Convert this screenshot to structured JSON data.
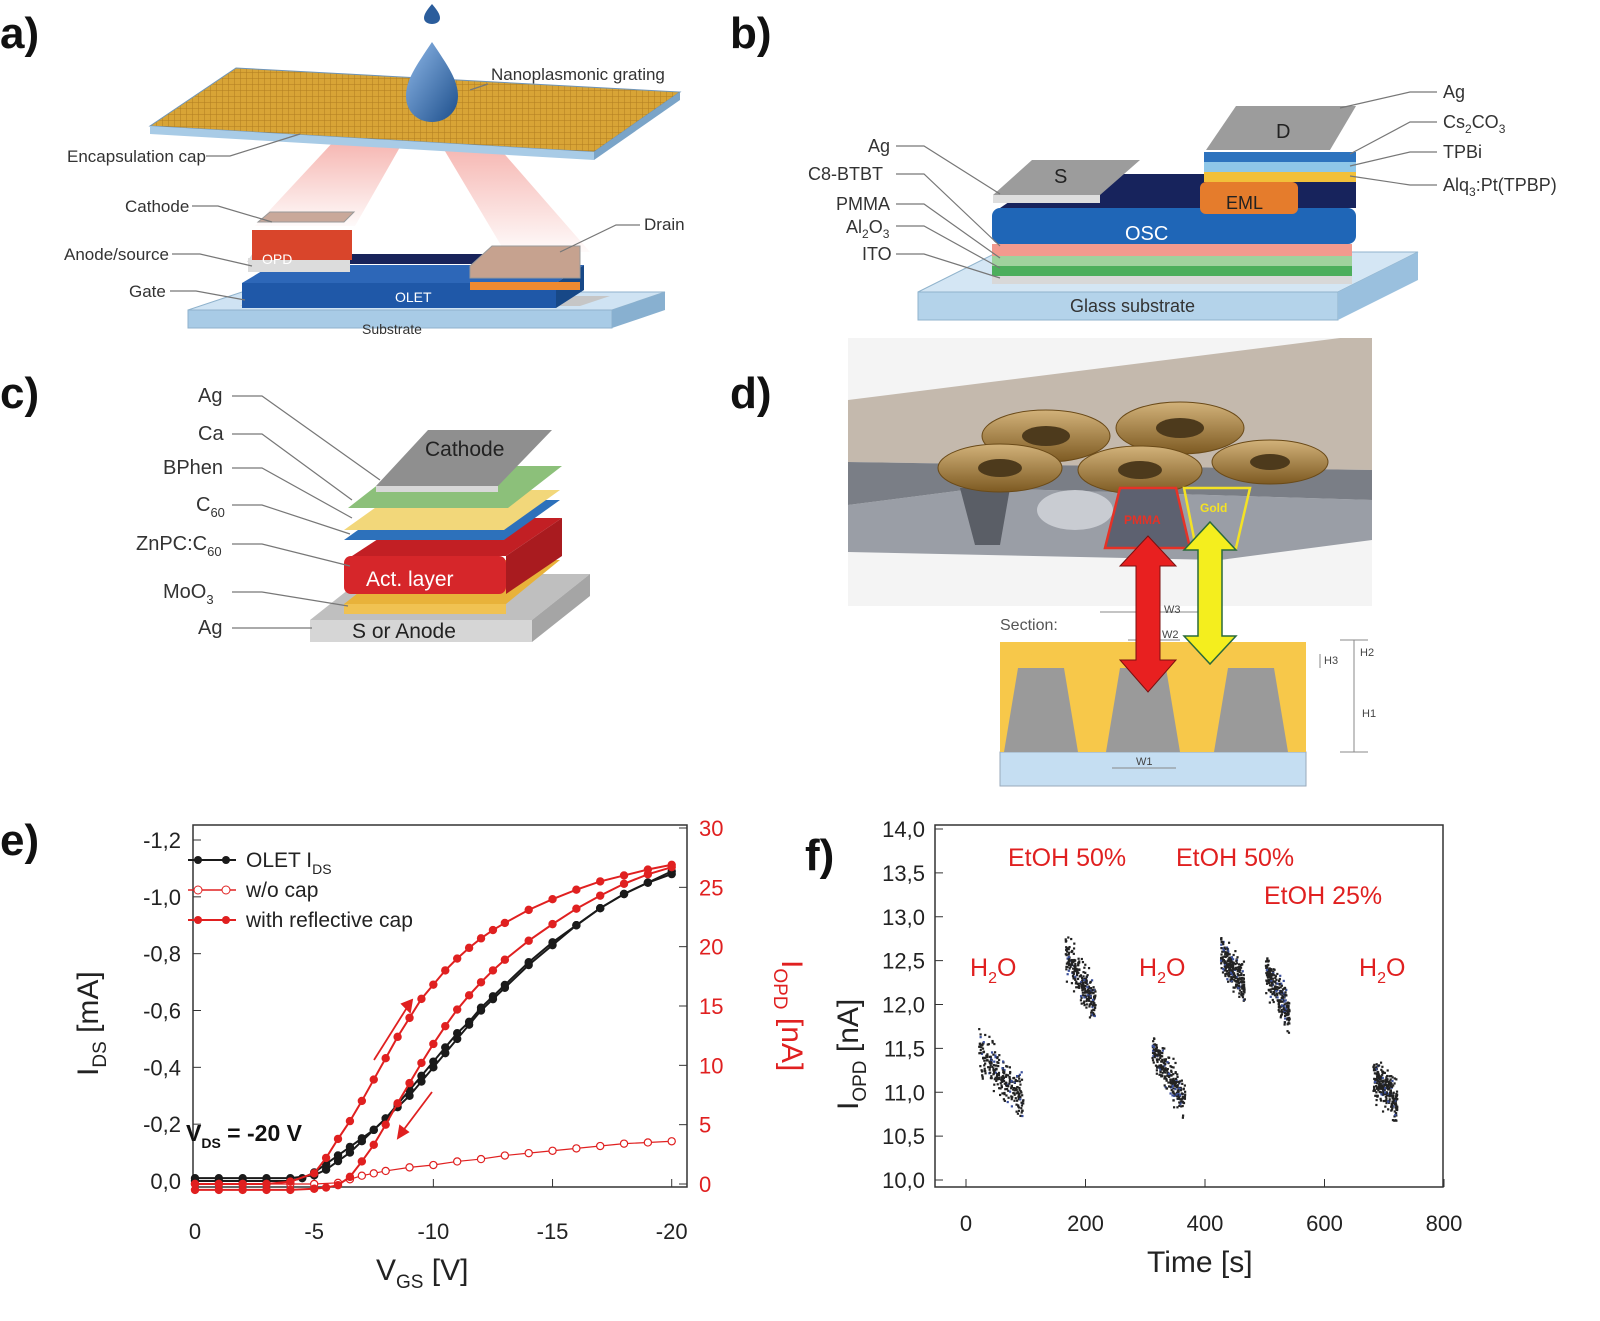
{
  "panels": {
    "a": {
      "tag": "a)",
      "labels": {
        "grating": "Nanoplasmonic grating",
        "cap": "Encapsulation cap",
        "cathode": "Cathode",
        "anode": "Anode/source",
        "gate": "Gate",
        "drain": "Drain",
        "opd": "OPD",
        "olet": "OLET",
        "substrate": "Substrate"
      }
    },
    "b": {
      "tag": "b)",
      "labels": {
        "ag_left": "Ag",
        "c8": "C8-BTBT",
        "pmma": "PMMA",
        "al2o3": "Al",
        "al2o3_sub": "2",
        "al2o3_end": "O",
        "al2o3_sub2": "3",
        "ito": "ITO",
        "s": "S",
        "osc": "OSC",
        "eml": "EML",
        "d": "D",
        "ag_right": "Ag",
        "cs": "Cs",
        "cs_sub": "2",
        "cs_end": "CO",
        "cs_sub2": "3",
        "tpbi": "TPBi",
        "alq": "Alq",
        "alq_sub": "3",
        "alq_end": ":Pt(TPBP)",
        "glass": "Glass substrate"
      }
    },
    "c": {
      "tag": "c)",
      "labels": {
        "ag_top": "Ag",
        "ca": "Ca",
        "bphen": "BPhen",
        "c60": "C",
        "c60_sub": "60",
        "znpc": "ZnPC:C",
        "znpc_sub": "60",
        "moo": "MoO",
        "moo_sub": "3",
        "ag_bottom": "Ag",
        "cathode": "Cathode",
        "act": "Act. layer",
        "anode": "S or Anode"
      }
    },
    "d": {
      "tag": "d)",
      "labels": {
        "pmma": "PMMA",
        "gold": "Gold",
        "section": "Section:",
        "w1": "W1",
        "w2": "W2",
        "w3": "W3",
        "h1": "H1",
        "h2": "H2",
        "h3": "H3"
      }
    }
  },
  "chart_e": {
    "tag": "e)",
    "type": "line",
    "xlabel": "V",
    "xlabel_sub": "GS",
    "xlabel_unit": " [V]",
    "ylabel": "I",
    "ylabel_sub": "DS",
    "ylabel_unit": " [mA]",
    "y2label": "I",
    "y2label_sub": "OPD",
    "y2label_unit": " [nA]",
    "x_ticks": [
      "0",
      "-5",
      "-10",
      "-15",
      "-20"
    ],
    "y_ticks": [
      "0,0",
      "-0,2",
      "-0,4",
      "-0,6",
      "-0,8",
      "-1,0",
      "-1,2"
    ],
    "y2_ticks": [
      "0",
      "5",
      "10",
      "15",
      "20",
      "25",
      "30"
    ],
    "xlim": [
      0,
      -20
    ],
    "ylim": [
      0,
      -1.2
    ],
    "y2lim": [
      0,
      30
    ],
    "annotation": "V",
    "annotation_sub": "DS",
    "annotation_end": " = -20 V",
    "legend": [
      {
        "name": "OLET I",
        "sub": "DS",
        "color": "#1a1a1a"
      },
      {
        "name": "w/o cap",
        "color": "#e02020"
      },
      {
        "name": "with reflective cap",
        "color": "#e02020"
      }
    ],
    "series": {
      "olet_up": {
        "axis": "left",
        "color": "#1a1a1a",
        "x": [
          0,
          -1,
          -2,
          -3,
          -4,
          -4.5,
          -5,
          -5.5,
          -6,
          -6.5,
          -7,
          -7.5,
          -8,
          -8.5,
          -9,
          -9.5,
          -10,
          -10.5,
          -11,
          -11.5,
          -12,
          -12.5,
          -13,
          -14,
          -15,
          -16,
          -17,
          -18,
          -19,
          -20
        ],
        "y": [
          0,
          0,
          0,
          0,
          0,
          -0.01,
          -0.03,
          -0.06,
          -0.09,
          -0.12,
          -0.15,
          -0.18,
          -0.22,
          -0.27,
          -0.32,
          -0.37,
          -0.42,
          -0.47,
          -0.52,
          -0.56,
          -0.61,
          -0.65,
          -0.69,
          -0.77,
          -0.84,
          -0.9,
          -0.96,
          -1.01,
          -1.05,
          -1.09
        ]
      },
      "olet_down": {
        "axis": "left",
        "color": "#1a1a1a",
        "x": [
          0,
          -1,
          -2,
          -3,
          -4,
          -5,
          -5.5,
          -6,
          -6.5,
          -7,
          -7.5,
          -8,
          -8.5,
          -9,
          -9.5,
          -10,
          -10.5,
          -11,
          -11.5,
          -12,
          -12.5,
          -13,
          -14,
          -15,
          -16,
          -17,
          -18,
          -19,
          -20
        ],
        "y": [
          -0.01,
          -0.01,
          -0.01,
          -0.01,
          -0.01,
          -0.02,
          -0.04,
          -0.07,
          -0.1,
          -0.14,
          -0.18,
          -0.22,
          -0.26,
          -0.3,
          -0.35,
          -0.4,
          -0.45,
          -0.5,
          -0.55,
          -0.6,
          -0.64,
          -0.68,
          -0.76,
          -0.83,
          -0.9,
          -0.96,
          -1.01,
          -1.05,
          -1.08
        ]
      },
      "wo_cap": {
        "axis": "right",
        "color": "#e02020",
        "open": true,
        "x": [
          0,
          -1,
          -2,
          -3,
          -4,
          -5,
          -6,
          -6.5,
          -7,
          -7.5,
          -8,
          -9,
          -10,
          -11,
          -12,
          -13,
          -14,
          -15,
          -16,
          -17,
          -18,
          -19,
          -20
        ],
        "y": [
          0,
          0,
          0,
          0,
          0,
          0,
          0.1,
          0.4,
          0.7,
          0.9,
          1.1,
          1.4,
          1.6,
          1.9,
          2.1,
          2.4,
          2.6,
          2.8,
          3.0,
          3.2,
          3.4,
          3.5,
          3.6
        ]
      },
      "cap_up": {
        "axis": "right",
        "color": "#e02020",
        "x": [
          0,
          -1,
          -2,
          -3,
          -4,
          -5,
          -5.5,
          -6,
          -6.5,
          -7,
          -7.5,
          -8,
          -8.5,
          -9,
          -9.5,
          -10,
          -10.5,
          -11,
          -11.5,
          -12,
          -12.5,
          -13,
          -14,
          -15,
          -16,
          -17,
          -18,
          -19,
          -20
        ],
        "y": [
          0,
          0,
          0,
          0,
          0.2,
          0.9,
          2.2,
          3.8,
          5.3,
          7.0,
          8.8,
          10.6,
          12.4,
          14.0,
          15.6,
          16.8,
          18.0,
          19.0,
          19.9,
          20.7,
          21.4,
          22.0,
          23.1,
          24.0,
          24.8,
          25.5,
          26.0,
          26.5,
          26.9
        ]
      },
      "cap_down": {
        "axis": "right",
        "color": "#e02020",
        "x": [
          0,
          -1,
          -2,
          -3,
          -4,
          -5,
          -5.5,
          -6,
          -6.5,
          -7,
          -7.5,
          -8,
          -8.5,
          -9,
          -9.5,
          -10,
          -10.5,
          -11,
          -11.5,
          -12,
          -12.5,
          -13,
          -14,
          -15,
          -16,
          -17,
          -18,
          -19,
          -20
        ],
        "y": [
          -0.5,
          -0.5,
          -0.5,
          -0.5,
          -0.5,
          -0.4,
          -0.3,
          -0.1,
          0.6,
          1.9,
          3.3,
          5.0,
          6.8,
          8.5,
          10.2,
          11.8,
          13.3,
          14.7,
          15.9,
          17.0,
          18.0,
          18.9,
          20.5,
          21.9,
          23.2,
          24.3,
          25.3,
          26.1,
          26.7
        ]
      }
    }
  },
  "chart_f": {
    "tag": "f)",
    "type": "scatter",
    "xlabel": "Time [s]",
    "ylabel": "I",
    "ylabel_sub": "OPD",
    "ylabel_unit": " [nA]",
    "x_ticks": [
      "0",
      "200",
      "400",
      "600",
      "800"
    ],
    "y_ticks": [
      "10,0",
      "10,5",
      "11,0",
      "11,5",
      "12,0",
      "12,5",
      "13,0",
      "13,5",
      "14,0"
    ],
    "xlim": [
      -40,
      800
    ],
    "ylim": [
      9.7,
      14.0
    ],
    "annotations": [
      {
        "text": "H",
        "sub": "2",
        "end": "O"
      },
      {
        "text": "EtOH 50%"
      },
      {
        "text": "H",
        "sub": "2",
        "end": "O"
      },
      {
        "text": "EtOH 50%"
      },
      {
        "text": "EtOH 25%"
      },
      {
        "text": "H",
        "sub": "2",
        "end": "O"
      }
    ],
    "clusters": [
      {
        "x": [
          20,
          95
        ],
        "y_start": 11.5,
        "y_end": 10.9,
        "spread": 0.55
      },
      {
        "x": [
          165,
          215
        ],
        "y_start": 12.6,
        "y_end": 12.0,
        "spread": 0.5
      },
      {
        "x": [
          310,
          365
        ],
        "y_start": 11.5,
        "y_end": 10.9,
        "spread": 0.45
      },
      {
        "x": [
          425,
          465
        ],
        "y_start": 12.6,
        "y_end": 12.2,
        "spread": 0.45
      },
      {
        "x": [
          500,
          540
        ],
        "y_start": 12.4,
        "y_end": 11.9,
        "spread": 0.45
      },
      {
        "x": [
          680,
          720
        ],
        "y_start": 11.2,
        "y_end": 10.9,
        "spread": 0.45
      }
    ]
  }
}
